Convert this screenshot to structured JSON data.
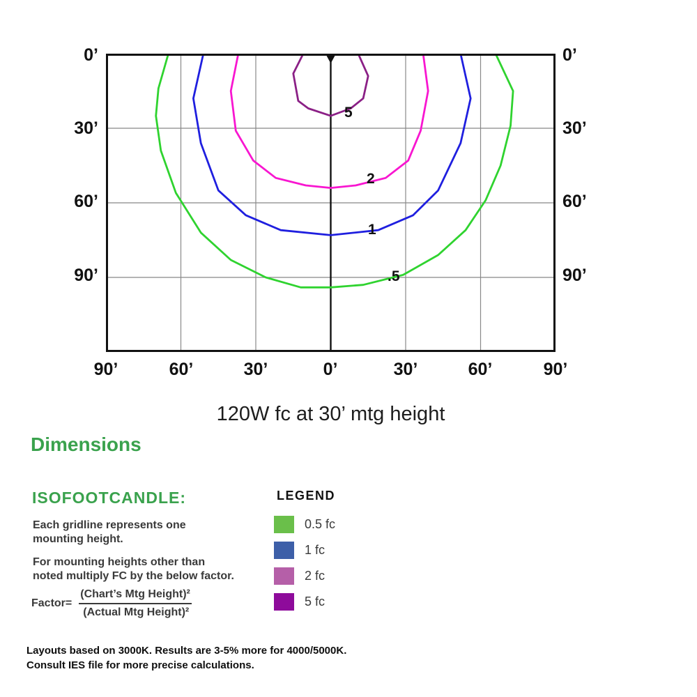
{
  "chart_data": {
    "type": "contour",
    "title": "120W fc at 30’ mtg height",
    "units": "feet (one gridline = one mounting height = 30 ft)",
    "x_axis": {
      "tick_labels": [
        "90’",
        "60’",
        "30’",
        "0’",
        "30’",
        "60’",
        "90’"
      ],
      "ticks_ft": [
        -90,
        -60,
        -30,
        0,
        30,
        60,
        90
      ],
      "range_ft": [
        -90,
        90
      ]
    },
    "y_axis": {
      "tick_labels": [
        "0’",
        "30’",
        "60’",
        "90’"
      ],
      "ticks_ft": [
        0,
        30,
        60,
        90
      ],
      "range_ft": [
        0,
        120
      ]
    },
    "grid": true,
    "luminaire_position_ft": [
      0,
      0
    ],
    "contours": [
      {
        "level_fc": 0.5,
        "label": ".5",
        "color": "#2fd32f",
        "points_ft": [
          [
            -65,
            0
          ],
          [
            -69,
            14
          ],
          [
            -70,
            25
          ],
          [
            -68,
            39
          ],
          [
            -62,
            56
          ],
          [
            -52,
            72
          ],
          [
            -40,
            83
          ],
          [
            -26,
            90
          ],
          [
            -12,
            94
          ],
          [
            0,
            94
          ],
          [
            13,
            93
          ],
          [
            29,
            89
          ],
          [
            43,
            81
          ],
          [
            54,
            71
          ],
          [
            62,
            59
          ],
          [
            68,
            45
          ],
          [
            72,
            29
          ],
          [
            73,
            15
          ],
          [
            66,
            0
          ]
        ]
      },
      {
        "level_fc": 1,
        "label": "1",
        "color": "#1f1fdf",
        "points_ft": [
          [
            -51,
            0
          ],
          [
            -55,
            18
          ],
          [
            -52,
            36
          ],
          [
            -45,
            55
          ],
          [
            -34,
            65
          ],
          [
            -20,
            71
          ],
          [
            0,
            73
          ],
          [
            19,
            71
          ],
          [
            33,
            65
          ],
          [
            43,
            55
          ],
          [
            52,
            36
          ],
          [
            56,
            18
          ],
          [
            52,
            0
          ]
        ]
      },
      {
        "level_fc": 2,
        "label": "2",
        "color": "#f816d0",
        "points_ft": [
          [
            -37,
            0
          ],
          [
            -40,
            15
          ],
          [
            -38,
            31
          ],
          [
            -31,
            43
          ],
          [
            -22,
            50
          ],
          [
            -10,
            53
          ],
          [
            0,
            54
          ],
          [
            10,
            53
          ],
          [
            22,
            50
          ],
          [
            31,
            43
          ],
          [
            36,
            31
          ],
          [
            39,
            15
          ],
          [
            37,
            0
          ]
        ]
      },
      {
        "level_fc": 5,
        "label": "5",
        "color": "#8b2086",
        "points_ft": [
          [
            -11,
            0
          ],
          [
            -15,
            8
          ],
          [
            -13,
            19
          ],
          [
            -9,
            22
          ],
          [
            0,
            25
          ],
          [
            8,
            22
          ],
          [
            13,
            18
          ],
          [
            15,
            9
          ],
          [
            11,
            0
          ]
        ]
      }
    ]
  },
  "dimensions_heading": "Dimensions",
  "isofootcandle": {
    "heading": "ISOFOOTCANDLE:",
    "paragraphs": [
      [
        "Each gridline represents one",
        "mounting height."
      ],
      [
        "For mounting heights other than",
        "noted multiply FC by the below factor."
      ]
    ],
    "factor_label": "Factor=",
    "factor_numerator": "(Chart’s Mtg Height)²",
    "factor_denominator": "(Actual Mtg Height)²"
  },
  "legend": {
    "heading": "LEGEND",
    "items": [
      {
        "label": "0.5 fc",
        "color": "#6abf4a"
      },
      {
        "label": "1 fc",
        "color": "#3d5fa8"
      },
      {
        "label": "2 fc",
        "color": "#b55fa8"
      },
      {
        "label": "5 fc",
        "color": "#8e0b9b"
      }
    ]
  },
  "footer": {
    "line1": "Layouts based on 3000K.  Results are 3-5% more for 4000/5000K.",
    "line2": "Consult IES file for more precise calculations."
  }
}
